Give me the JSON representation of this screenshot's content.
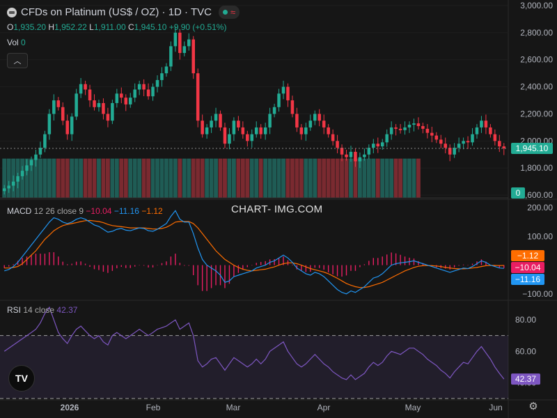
{
  "header": {
    "title": "CFDs on Platinum (US$ / OZ) · 1D · TVC",
    "ohlc": [
      {
        "k": "O",
        "v": "1,935.20"
      },
      {
        "k": "H",
        "v": "1,952.22"
      },
      {
        "k": "L",
        "v": "1,911.00"
      },
      {
        "k": "C",
        "v": "1,945.10"
      }
    ],
    "change": "+9.90 (+0.51%)",
    "vol_label": "Vol",
    "vol_value": "0",
    "wave_icon": "≈"
  },
  "watermark": "CHART- IMG.COM",
  "macd_label": {
    "name": "MACD",
    "params": "12 26 close 9",
    "hist": "−10.04",
    "macd": "−11.16",
    "signal": "−1.12"
  },
  "rsi_label": {
    "name": "RSI",
    "params": "14 close",
    "value": "42.37"
  },
  "colors": {
    "up": "#22ab94",
    "down": "#f23645",
    "macd": "#2196f3",
    "signal": "#ff6d00",
    "hist": "#e91e63",
    "rsi": "#7e57c2",
    "bg": "#161616"
  },
  "chart_data": [
    {
      "type": "candlestick",
      "title": "CFDs on Platinum (US$ / OZ)",
      "y_ticks": [
        "3,000.00",
        "2,800.00",
        "2,600.00",
        "2,400.00",
        "2,200.00",
        "2,000.00",
        "1,800.00",
        "1,600.00"
      ],
      "ylim": [
        1580,
        3000
      ],
      "x_ticks": [
        "2026",
        "Feb",
        "Mar",
        "Apr",
        "May",
        "Jun"
      ],
      "last_price": "1,945.10",
      "volume_badge": "0",
      "closes": [
        1650,
        1670,
        1700,
        1740,
        1780,
        1820,
        1860,
        1900,
        1950,
        2050,
        2200,
        2300,
        2250,
        2150,
        2050,
        2180,
        2350,
        2420,
        2380,
        2300,
        2250,
        2280,
        2200,
        2150,
        2280,
        2350,
        2320,
        2270,
        2320,
        2380,
        2420,
        2380,
        2330,
        2400,
        2450,
        2500,
        2550,
        2700,
        2800,
        2650,
        2700,
        2750,
        2500,
        2150,
        2050,
        2100,
        2150,
        2200,
        2100,
        1980,
        2050,
        2150,
        2100,
        2050,
        2000,
        2050,
        2100,
        2050,
        2100,
        2200,
        2250,
        2350,
        2400,
        2300,
        2200,
        2100,
        2050,
        2100,
        2150,
        2200,
        2150,
        2100,
        2050,
        2000,
        1950,
        1900,
        1880,
        1920,
        1850,
        1880,
        1900,
        1950,
        1980,
        1960,
        1990,
        2050,
        2100,
        2090,
        2080,
        2100,
        2120,
        2130,
        2110,
        2090,
        2060,
        2040,
        2010,
        1980,
        1950,
        1900,
        1950,
        1980,
        2000,
        1990,
        2050,
        2100,
        2150,
        2100,
        2050,
        2000,
        1960,
        1945
      ],
      "volume_bars_through_index": 92,
      "volume_baseline": "1,870"
    },
    {
      "type": "line",
      "title": "MACD 12 26 close 9",
      "y_ticks": [
        "200.00",
        "100.00",
        "−100.00"
      ],
      "ylim": [
        -120,
        220
      ],
      "series": [
        {
          "name": "MACD",
          "values": [
            -20,
            -15,
            -5,
            10,
            30,
            50,
            70,
            90,
            110,
            130,
            150,
            165,
            160,
            150,
            145,
            150,
            160,
            165,
            160,
            150,
            140,
            135,
            125,
            115,
            118,
            125,
            128,
            122,
            120,
            125,
            130,
            128,
            120,
            118,
            125,
            135,
            145,
            170,
            190,
            160,
            150,
            150,
            110,
            60,
            20,
            0,
            -10,
            -20,
            -35,
            -60,
            -55,
            -40,
            -35,
            -30,
            -25,
            -20,
            -10,
            -5,
            0,
            10,
            15,
            25,
            35,
            25,
            10,
            -10,
            -20,
            -30,
            -35,
            -25,
            -30,
            -40,
            -55,
            -70,
            -85,
            -95,
            -100,
            -90,
            -95,
            -85,
            -75,
            -60,
            -45,
            -40,
            -30,
            -15,
            0,
            5,
            8,
            10,
            12,
            15,
            10,
            5,
            0,
            -5,
            -10,
            -15,
            -20,
            -25,
            -20,
            -15,
            -10,
            -12,
            -5,
            5,
            15,
            10,
            0,
            -5,
            -10,
            -11.16
          ]
        },
        {
          "name": "Signal",
          "values": [
            -10,
            -10,
            -8,
            -5,
            5,
            20,
            35,
            50,
            70,
            90,
            105,
            120,
            130,
            138,
            142,
            145,
            148,
            152,
            155,
            156,
            154,
            152,
            148,
            142,
            138,
            136,
            134,
            132,
            130,
            130,
            130,
            130,
            128,
            126,
            126,
            128,
            132,
            140,
            150,
            152,
            152,
            152,
            145,
            130,
            110,
            90,
            70,
            50,
            35,
            20,
            10,
            0,
            -8,
            -14,
            -18,
            -20,
            -18,
            -16,
            -14,
            -10,
            -6,
            0,
            5,
            8,
            8,
            5,
            0,
            -6,
            -12,
            -16,
            -20,
            -24,
            -30,
            -38,
            -46,
            -55,
            -64,
            -70,
            -75,
            -78,
            -78,
            -75,
            -70,
            -65,
            -60,
            -52,
            -44,
            -36,
            -28,
            -20,
            -14,
            -8,
            -4,
            -2,
            -1,
            -2,
            -3,
            -5,
            -8,
            -10,
            -12,
            -13,
            -13,
            -12,
            -10,
            -8,
            -5,
            -2,
            -1,
            -1,
            -1.5,
            -1.12
          ]
        },
        {
          "name": "Histogram",
          "values": [
            -10,
            -5,
            3,
            15,
            25,
            30,
            35,
            40,
            40,
            40,
            45,
            45,
            30,
            12,
            3,
            5,
            12,
            13,
            5,
            -6,
            -14,
            -17,
            -23,
            -27,
            -20,
            -11,
            -6,
            -10,
            -10,
            -5,
            0,
            -2,
            -8,
            -8,
            -1,
            7,
            13,
            30,
            40,
            8,
            -2,
            -2,
            -35,
            -70,
            -90,
            -90,
            -80,
            -70,
            -70,
            -80,
            -65,
            -40,
            -27,
            -16,
            -7,
            0,
            8,
            11,
            14,
            20,
            21,
            25,
            30,
            17,
            2,
            -15,
            -20,
            -24,
            -23,
            -9,
            -10,
            -16,
            -25,
            -32,
            -39,
            -40,
            -36,
            -20,
            -20,
            -7,
            3,
            15,
            25,
            25,
            30,
            37,
            44,
            41,
            36,
            30,
            26,
            23,
            14,
            7,
            1,
            -3,
            -7,
            -10,
            -12,
            -15,
            -8,
            -2,
            2,
            0,
            5,
            13,
            20,
            12,
            1,
            -4,
            -9,
            -10.04
          ]
        }
      ]
    },
    {
      "type": "line",
      "title": "RSI 14 close",
      "y_ticks": [
        "80.00",
        "60.00",
        "40.00"
      ],
      "ylim": [
        30,
        92
      ],
      "bands": [
        30,
        70
      ],
      "series": [
        {
          "name": "RSI",
          "values": [
            60,
            62,
            64,
            66,
            68,
            70,
            72,
            74,
            78,
            84,
            88,
            80,
            72,
            68,
            65,
            70,
            74,
            76,
            73,
            70,
            68,
            70,
            66,
            64,
            70,
            72,
            70,
            68,
            70,
            72,
            74,
            72,
            70,
            72,
            74,
            75,
            76,
            78,
            80,
            74,
            76,
            78,
            70,
            54,
            50,
            52,
            55,
            56,
            52,
            48,
            52,
            56,
            54,
            52,
            50,
            52,
            55,
            52,
            55,
            60,
            62,
            64,
            66,
            60,
            56,
            52,
            50,
            52,
            55,
            58,
            55,
            52,
            50,
            47,
            45,
            43,
            42,
            45,
            42,
            44,
            46,
            50,
            53,
            51,
            53,
            57,
            60,
            59,
            58,
            60,
            62,
            62,
            60,
            58,
            55,
            53,
            51,
            48,
            46,
            43,
            47,
            50,
            53,
            52,
            56,
            60,
            63,
            59,
            55,
            50,
            46,
            42.37
          ]
        }
      ]
    }
  ]
}
